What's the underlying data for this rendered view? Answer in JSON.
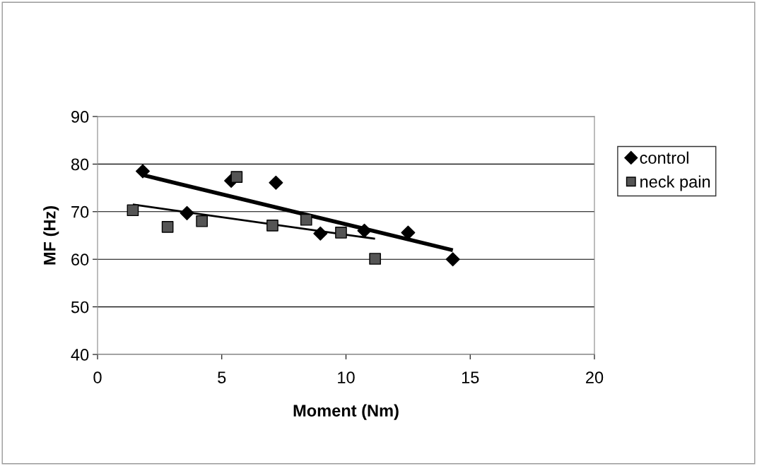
{
  "chart_data": {
    "type": "scatter",
    "xlabel": "Moment (Nm)",
    "ylabel": "MF (Hz)",
    "xlim": [
      0,
      20
    ],
    "xticks": [
      0,
      5,
      10,
      15,
      20
    ],
    "ylim": [
      40,
      90
    ],
    "yticks": [
      40,
      50,
      60,
      70,
      80,
      90
    ],
    "grid": "y",
    "legend": "right",
    "series": [
      {
        "name": "control",
        "color": "#000000",
        "marker": "diamond",
        "x": [
          1.82,
          3.6,
          5.38,
          7.18,
          8.97,
          10.74,
          12.5,
          14.3
        ],
        "values": [
          78.5,
          69.7,
          76.5,
          76.1,
          65.4,
          66.0,
          65.6,
          60.0
        ]
      },
      {
        "name": "neck pain",
        "color": "#555555",
        "marker": "square",
        "x": [
          1.42,
          2.82,
          4.2,
          5.6,
          7.04,
          8.4,
          9.8,
          11.17
        ],
        "values": [
          70.3,
          66.8,
          68.0,
          77.3,
          67.1,
          68.3,
          65.6,
          60.1
        ]
      },
      {
        "type": "line",
        "color": "#000000",
        "marker": "none",
        "x": [
          1.82,
          14.3
        ],
        "values": [
          77.7,
          61.9
        ]
      },
      {
        "type": "line",
        "color": "#000000",
        "marker": "none",
        "x": [
          1.42,
          11.17
        ],
        "values": [
          71.5,
          64.3
        ]
      }
    ]
  }
}
